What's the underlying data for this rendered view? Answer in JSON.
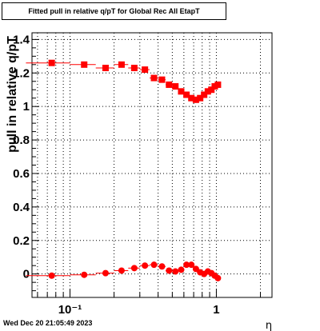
{
  "title": "Fitted pull in relative q/pT for Global Rec All EtapT",
  "footer_timestamp": "Wed Dec 20 21:05:49 2023",
  "colors": {
    "series": "#ff0000",
    "axis": "#000000",
    "grid": "#000000",
    "background": "#ffffff"
  },
  "chart_data": {
    "type": "scatter",
    "title": "Fitted pull in relative q/pT for Global Rec All EtapT",
    "xlabel": "η",
    "ylabel": "pull in relative q/pT",
    "x_scale": "log",
    "xlim": [
      0.055,
      2.4
    ],
    "ylim": [
      -0.14,
      1.44
    ],
    "grid": true,
    "y_ticks": [
      0,
      0.2,
      0.4,
      0.6,
      0.8,
      1,
      1.2,
      1.4
    ],
    "y_tick_labels": [
      "0",
      "0.2",
      "0.4",
      "0.6",
      "0.8",
      "1",
      "1.2",
      "1.4"
    ],
    "x_ticks": [
      0.1,
      1
    ],
    "x_tick_labels": [
      "10⁻¹",
      "1"
    ],
    "series": [
      {
        "marker": "square",
        "x": [
          0.075,
          0.125,
          0.175,
          0.225,
          0.275,
          0.325,
          0.375,
          0.425,
          0.475,
          0.525,
          0.575,
          0.625,
          0.675,
          0.725,
          0.775,
          0.825,
          0.875,
          0.925,
          0.975,
          1.025
        ],
        "y": [
          1.26,
          1.25,
          1.23,
          1.25,
          1.23,
          1.22,
          1.17,
          1.16,
          1.13,
          1.12,
          1.09,
          1.07,
          1.05,
          1.04,
          1.05,
          1.07,
          1.09,
          1.1,
          1.12,
          1.13
        ],
        "xerr": [
          0.025,
          0.025,
          0.025,
          0.025,
          0.025,
          0.025,
          0.025,
          0.025,
          0.025,
          0.025,
          0.025,
          0.025,
          0.025,
          0.025,
          0.025,
          0.025,
          0.025,
          0.025,
          0.025,
          0.025
        ]
      },
      {
        "marker": "circle",
        "x": [
          0.075,
          0.125,
          0.175,
          0.225,
          0.275,
          0.325,
          0.375,
          0.425,
          0.475,
          0.525,
          0.575,
          0.625,
          0.675,
          0.725,
          0.775,
          0.825,
          0.875,
          0.925,
          0.975,
          1.025
        ],
        "y": [
          -0.01,
          -0.005,
          0.005,
          0.02,
          0.035,
          0.05,
          0.055,
          0.045,
          0.02,
          0.015,
          0.025,
          0.055,
          0.055,
          0.03,
          0.01,
          0.0,
          0.015,
          0.005,
          -0.01,
          -0.025
        ],
        "xerr": [
          0.025,
          0.025,
          0.025,
          0.025,
          0.025,
          0.025,
          0.025,
          0.025,
          0.025,
          0.025,
          0.025,
          0.025,
          0.025,
          0.025,
          0.025,
          0.025,
          0.025,
          0.025,
          0.025,
          0.025
        ]
      }
    ]
  }
}
